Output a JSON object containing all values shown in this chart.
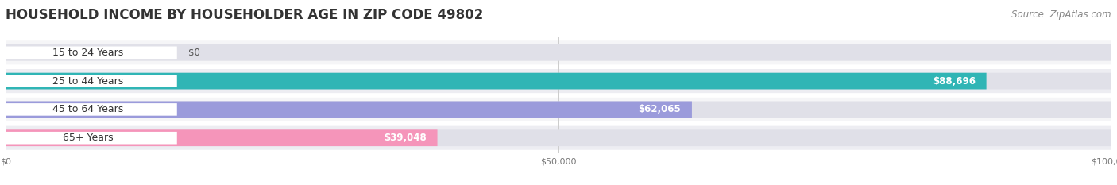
{
  "title": "HOUSEHOLD INCOME BY HOUSEHOLDER AGE IN ZIP CODE 49802",
  "source": "Source: ZipAtlas.com",
  "categories": [
    "15 to 24 Years",
    "25 to 44 Years",
    "45 to 64 Years",
    "65+ Years"
  ],
  "values": [
    0,
    88696,
    62065,
    39048
  ],
  "value_labels": [
    "$0",
    "$88,696",
    "$62,065",
    "$39,048"
  ],
  "bar_colors": [
    "#c9a8d8",
    "#30b5b5",
    "#9b9bdb",
    "#f595ba"
  ],
  "bg_color": "#ffffff",
  "row_bg_even": "#f2f2f2",
  "row_bg_odd": "#e8e8e8",
  "bar_track_color": "#e0e0e8",
  "xlim": [
    0,
    100000
  ],
  "xticks": [
    0,
    50000,
    100000
  ],
  "xtick_labels": [
    "$0",
    "$50,000",
    "$100,000"
  ],
  "title_fontsize": 12,
  "source_fontsize": 8.5,
  "label_fontsize": 9,
  "value_fontsize": 8.5,
  "val_label_inside_color": "#ffffff",
  "val_label_outside_color": "#555555"
}
